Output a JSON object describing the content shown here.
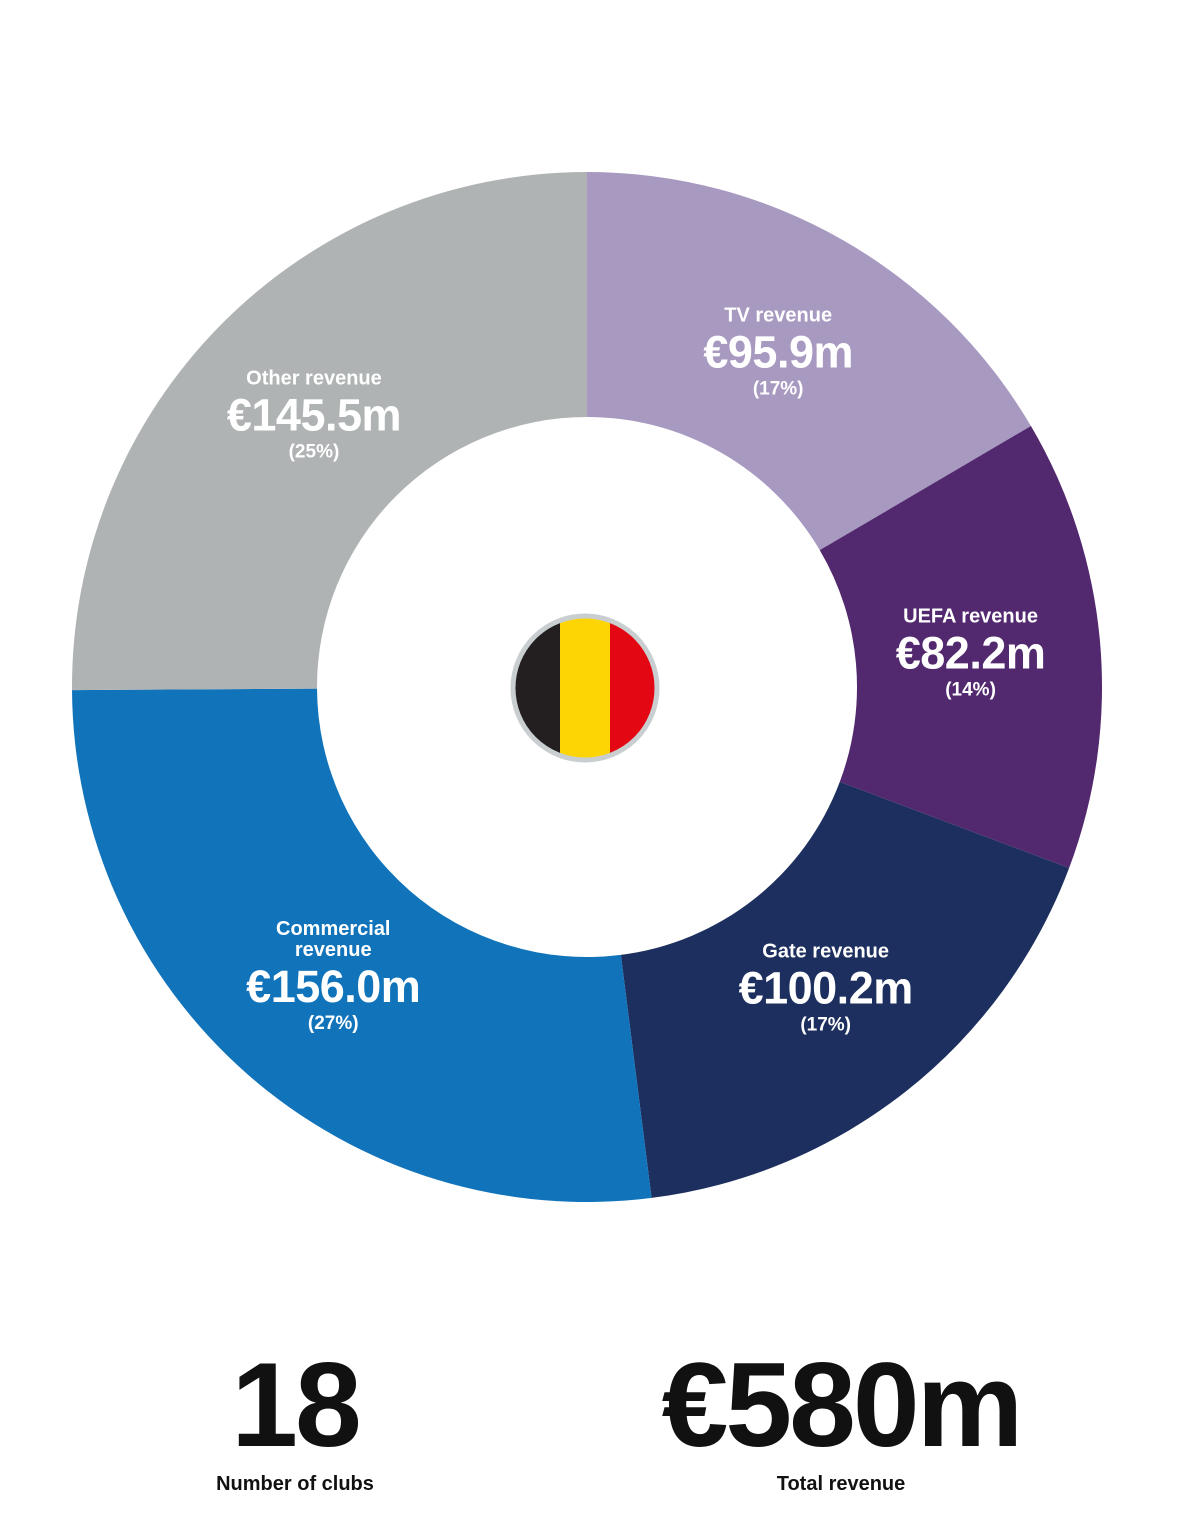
{
  "chart_data": {
    "type": "donut",
    "categories": [
      "TV revenue",
      "UEFA revenue",
      "Gate revenue",
      "Commercial revenue",
      "Other revenue"
    ],
    "values": [
      95.9,
      82.2,
      100.2,
      156.0,
      145.5
    ],
    "value_labels": [
      "€95.9m",
      "€82.2m",
      "€100.2m",
      "€156.0m",
      "€145.5m"
    ],
    "percent_labels": [
      "(17%)",
      "(14%)",
      "(17%)",
      "(27%)",
      "(25%)"
    ],
    "colors": [
      "#a899c1",
      "#52286e",
      "#1d2f5e",
      "#1174bb",
      "#b0b3b4"
    ]
  },
  "stats": [
    {
      "value": 18,
      "label": "Number of clubs"
    },
    {
      "value": "€580m",
      "label": "Total revenue"
    }
  ]
}
